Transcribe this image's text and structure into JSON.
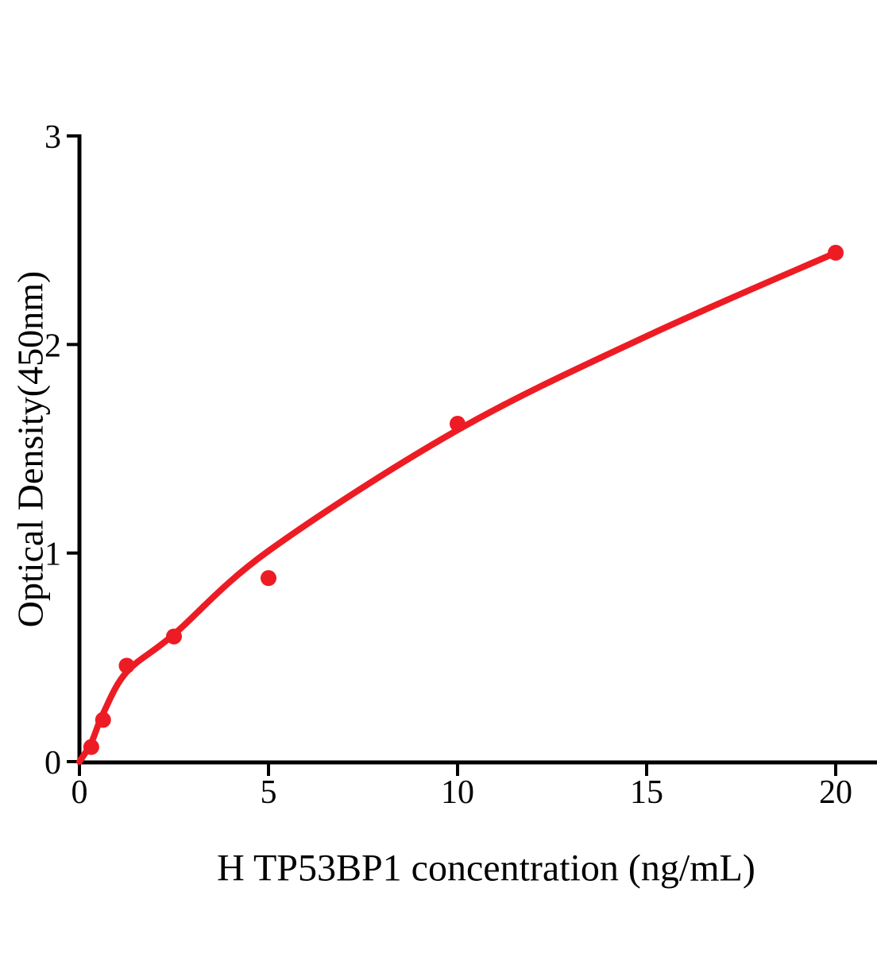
{
  "figure": {
    "background_color": "#ffffff",
    "axis_color": "#000000",
    "accent_color": "#ed1c24"
  },
  "chart_data": {
    "type": "scatter",
    "title": "",
    "xlabel": "H TP53BP1 concentration (ng/mL)",
    "ylabel": "Optical Density(450nm)",
    "xlim": [
      0,
      21.1
    ],
    "ylim": [
      0,
      3
    ],
    "x_ticks": [
      0,
      5,
      10,
      15,
      20
    ],
    "y_ticks": [
      0,
      1,
      2,
      3
    ],
    "grid": false,
    "legend": "none",
    "series": [
      {
        "name": "standard-curve-points",
        "marker": "circle",
        "marker_color": "#ed1c24",
        "concentrations": [
          0.3125,
          0.625,
          1.25,
          2.5,
          5,
          10,
          20
        ],
        "od_values": [
          0.07,
          0.2,
          0.46,
          0.6,
          0.88,
          1.62,
          2.44
        ]
      }
    ],
    "fit_curve": {
      "name": "fitted-standard-curve",
      "line_color": "#ed1c24",
      "points": [
        {
          "x": 0,
          "y": 0
        },
        {
          "x": 0.3125,
          "y": 0.09
        },
        {
          "x": 0.625,
          "y": 0.23
        },
        {
          "x": 1.25,
          "y": 0.43
        },
        {
          "x": 2.5,
          "y": 0.61
        },
        {
          "x": 5,
          "y": 1.01
        },
        {
          "x": 10,
          "y": 1.59
        },
        {
          "x": 15,
          "y": 2.04
        },
        {
          "x": 20,
          "y": 2.44
        }
      ]
    }
  }
}
